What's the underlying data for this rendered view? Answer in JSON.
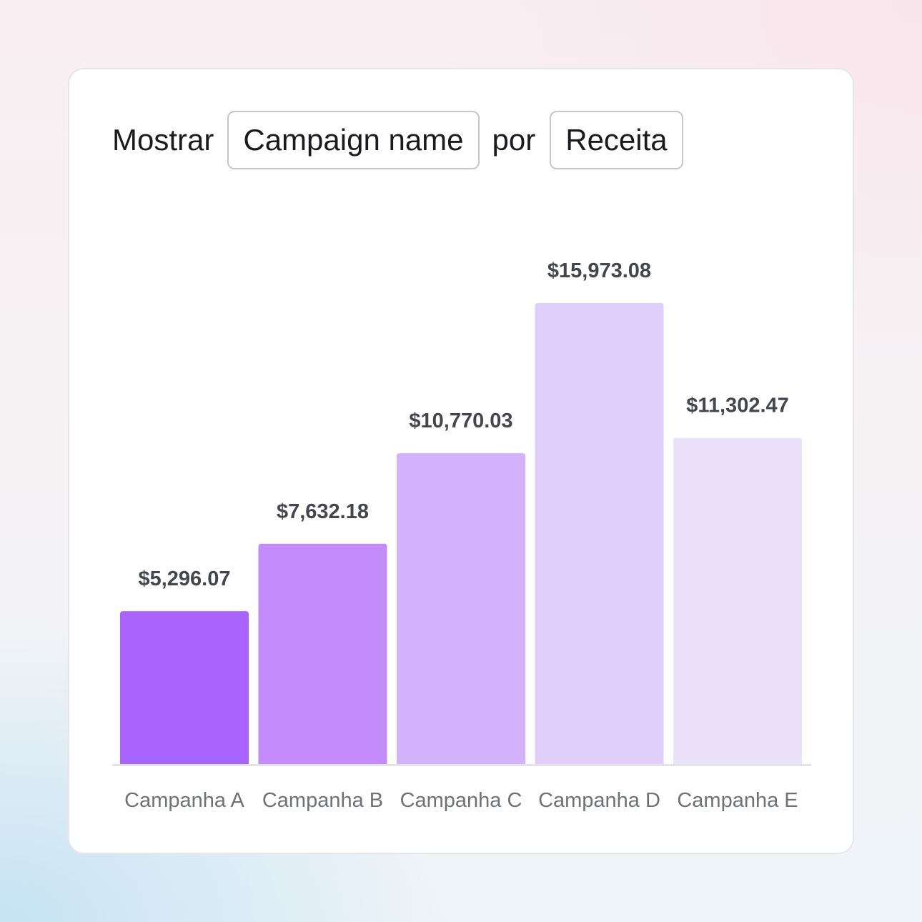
{
  "controls": {
    "show_label": "Mostrar",
    "dimension_value": "Campaign name",
    "by_label": "por",
    "metric_value": "Receita"
  },
  "colors": {
    "bars": [
      "#a964fd",
      "#c48bfd",
      "#d3b3fb",
      "#e1cffb",
      "#ebe1fb"
    ],
    "baseline": "#e3e3e6",
    "value_text": "#45464d",
    "category_text": "#6f7178"
  },
  "chart_data": {
    "type": "bar",
    "categories": [
      "Campanha A",
      "Campanha B",
      "Campanha C",
      "Campanha D",
      "Campanha E"
    ],
    "values": [
      5296.07,
      7632.18,
      10770.03,
      15973.08,
      11302.47
    ],
    "value_labels": [
      "$5,296.07",
      "$7,632.18",
      "$10,770.03",
      "$15,973.08",
      "$11,302.47"
    ],
    "title": "",
    "xlabel": "",
    "ylabel": "",
    "grid": false,
    "legend": "none"
  }
}
